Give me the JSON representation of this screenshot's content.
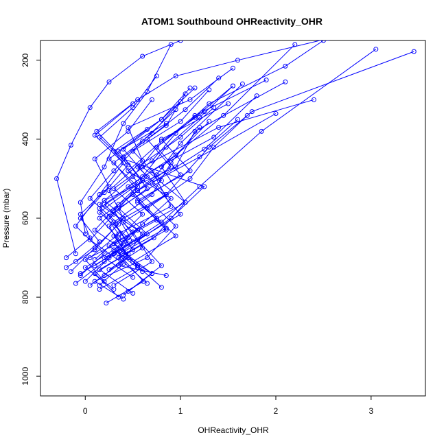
{
  "chart_data": {
    "type": "line",
    "title": "ATOM1 Southbound OHReactivity_OHR",
    "xlabel": "OHReactivity_OHR",
    "ylabel": "Pressure (mbar)",
    "xlim": [
      -0.47,
      3.57
    ],
    "ylim": [
      1050,
      150
    ],
    "y_reversed": true,
    "x_ticks": [
      0,
      1,
      2,
      3
    ],
    "y_ticks": [
      200,
      400,
      600,
      800,
      1000
    ],
    "x_tick_labels": [
      "0",
      "1",
      "2",
      "3"
    ],
    "y_tick_labels": [
      "200",
      "400",
      "600",
      "800",
      "1000"
    ],
    "grid": false,
    "legend": "none",
    "series_color": "#0000ff",
    "marker": "open-circle",
    "series": [
      {
        "x": [
          0.22,
          0.61,
          0.35,
          0.9,
          1.25,
          0.4,
          0.12,
          0.55,
          0.95,
          1.6,
          2.55
        ],
        "y": [
          815,
          760,
          690,
          600,
          520,
          450,
          380,
          300,
          240,
          200,
          145
        ]
      },
      {
        "x": [
          -0.05,
          0.3,
          0.8,
          1.2,
          1.85,
          3.05
        ],
        "y": [
          740,
          690,
          610,
          520,
          380,
          172
        ]
      },
      {
        "x": [
          0.5,
          0.15,
          0.72,
          1.05,
          0.6,
          1.4,
          2.4
        ],
        "y": [
          790,
          730,
          650,
          560,
          470,
          370,
          300
        ]
      },
      {
        "x": [
          0.05,
          0.45,
          0.25,
          0.85,
          1.3,
          1.75,
          3.45
        ],
        "y": [
          770,
          700,
          620,
          540,
          420,
          330,
          178
        ]
      },
      {
        "x": [
          0.85,
          0.35,
          0.6,
          0.2,
          0.95,
          1.15,
          2.1
        ],
        "y": [
          745,
          720,
          640,
          555,
          470,
          380,
          255
        ]
      },
      {
        "x": [
          -0.1,
          0.2,
          0.5,
          0.3,
          0.75,
          1.0,
          1.65
        ],
        "y": [
          765,
          710,
          660,
          580,
          490,
          410,
          260
        ]
      },
      {
        "x": [
          0.4,
          0.1,
          0.65,
          0.95,
          0.55,
          1.2,
          2.0
        ],
        "y": [
          805,
          760,
          700,
          620,
          530,
          445,
          335
        ]
      },
      {
        "x": [
          0.15,
          0.55,
          0.3,
          0.9,
          0.7,
          1.35,
          1.8
        ],
        "y": [
          780,
          725,
          645,
          570,
          480,
          395,
          290
        ]
      },
      {
        "x": [
          -0.2,
          0.1,
          0.4,
          0.25,
          0.6,
          0.45,
          1.1,
          1.55
        ],
        "y": [
          725,
          680,
          600,
          530,
          455,
          370,
          300,
          220
        ]
      },
      {
        "x": [
          0.3,
          0.7,
          0.5,
          1.05,
          0.8,
          1.45,
          2.2
        ],
        "y": [
          770,
          710,
          635,
          560,
          470,
          340,
          160
        ]
      },
      {
        "x": [
          -0.1,
          -0.3,
          -0.15,
          0.05,
          0.25,
          0.6,
          1.0
        ],
        "y": [
          690,
          500,
          415,
          320,
          255,
          190,
          150
        ]
      },
      {
        "x": [
          0.0,
          -0.05,
          0.2,
          0.4,
          0.65,
          0.9
        ],
        "y": [
          640,
          560,
          470,
          360,
          280,
          160
        ]
      },
      {
        "x": [
          0.05,
          0.35,
          0.15,
          0.55,
          0.3,
          0.8,
          1.1
        ],
        "y": [
          700,
          640,
          575,
          510,
          430,
          350,
          270
        ]
      },
      {
        "x": [
          0.6,
          0.25,
          0.75,
          0.45,
          0.95,
          1.3
        ],
        "y": [
          735,
          670,
          600,
          520,
          440,
          355
        ]
      },
      {
        "x": [
          0.2,
          0.0,
          0.45,
          0.15,
          0.6,
          0.35,
          0.85
        ],
        "y": [
          760,
          705,
          650,
          585,
          505,
          430,
          360
        ]
      },
      {
        "x": [
          0.45,
          0.8,
          0.55,
          1.0,
          0.7,
          1.25,
          1.6
        ],
        "y": [
          785,
          720,
          655,
          590,
          510,
          425,
          350
        ]
      },
      {
        "x": [
          -0.05,
          0.2,
          -0.1,
          0.15,
          0.4,
          0.1,
          0.5
        ],
        "y": [
          745,
          690,
          620,
          540,
          460,
          390,
          310
        ]
      },
      {
        "x": [
          0.35,
          0.1,
          0.5,
          0.3,
          0.7,
          0.9,
          1.2
        ],
        "y": [
          800,
          740,
          680,
          610,
          540,
          460,
          370
        ]
      },
      {
        "x": [
          0.1,
          0.45,
          0.25,
          0.65,
          0.4,
          0.85,
          1.05
        ],
        "y": [
          720,
          665,
          595,
          525,
          445,
          365,
          285
        ]
      },
      {
        "x": [
          0.65,
          0.35,
          0.85,
          0.55,
          1.1,
          0.8,
          1.5
        ],
        "y": [
          765,
          700,
          630,
          555,
          480,
          400,
          310
        ]
      },
      {
        "x": [
          0.25,
          0.6,
          0.4,
          0.85,
          0.55,
          1.0,
          1.35
        ],
        "y": [
          730,
          675,
          610,
          540,
          470,
          395,
          320
        ]
      },
      {
        "x": [
          -0.2,
          0.05,
          -0.05,
          0.25,
          0.1,
          0.45,
          0.7
        ],
        "y": [
          700,
          650,
          590,
          520,
          450,
          380,
          300
        ]
      },
      {
        "x": [
          0.5,
          0.2,
          0.65,
          0.35,
          0.8,
          0.5,
          1.0,
          1.3
        ],
        "y": [
          750,
          700,
          640,
          575,
          505,
          430,
          355,
          275
        ]
      },
      {
        "x": [
          0.3,
          0.55,
          0.15,
          0.5,
          0.75,
          1.15,
          1.9
        ],
        "y": [
          690,
          630,
          565,
          495,
          420,
          340,
          250
        ]
      },
      {
        "x": [
          -0.15,
          0.1,
          0.35,
          0.05,
          0.3,
          0.6,
          0.95
        ],
        "y": [
          735,
          675,
          615,
          550,
          480,
          405,
          325
        ]
      },
      {
        "x": [
          0.8,
          0.5,
          0.95,
          0.65,
          1.1,
          1.35,
          1.7
        ],
        "y": [
          775,
          710,
          645,
          575,
          500,
          420,
          340
        ]
      },
      {
        "x": [
          0.15,
          0.4,
          0.05,
          0.3,
          0.55,
          0.25,
          0.65
        ],
        "y": [
          770,
          715,
          655,
          590,
          520,
          450,
          375
        ]
      },
      {
        "x": [
          0.4,
          0.7,
          0.3,
          0.6,
          0.9,
          0.45,
          0.8,
          1.25
        ],
        "y": [
          795,
          740,
          680,
          615,
          550,
          480,
          405,
          330
        ]
      },
      {
        "x": [
          0.0,
          0.25,
          0.5,
          0.2,
          0.6,
          0.85,
          1.2,
          1.55
        ],
        "y": [
          760,
          700,
          635,
          565,
          495,
          420,
          345,
          265
        ]
      },
      {
        "x": [
          0.55,
          0.3,
          0.75,
          0.5,
          0.9,
          0.65,
          1.05,
          1.4
        ],
        "y": [
          720,
          665,
          605,
          540,
          470,
          400,
          325,
          245
        ]
      },
      {
        "x": [
          -0.1,
          0.15,
          -0.05,
          0.2,
          0.45,
          0.15,
          0.5,
          0.75
        ],
        "y": [
          710,
          660,
          600,
          535,
          465,
          395,
          320,
          240
        ]
      },
      {
        "x": [
          0.3,
          0.0,
          0.4,
          0.15,
          0.55,
          0.3,
          0.7,
          1.0
        ],
        "y": [
          780,
          725,
          665,
          600,
          530,
          460,
          385,
          305
        ]
      },
      {
        "x": [
          0.7,
          0.4,
          0.85,
          0.55,
          1.0,
          0.75,
          1.15,
          1.55
        ],
        "y": [
          740,
          685,
          625,
          560,
          490,
          420,
          345,
          265
        ]
      },
      {
        "x": [
          0.2,
          0.45,
          0.1,
          0.35,
          0.65,
          0.4,
          0.8,
          1.15
        ],
        "y": [
          745,
          690,
          630,
          565,
          495,
          425,
          350,
          270
        ]
      },
      {
        "x": [
          0.1,
          0.35,
          0.6,
          0.3,
          0.7,
          0.95,
          1.3,
          2.1,
          2.5
        ],
        "y": [
          705,
          650,
          590,
          525,
          455,
          385,
          310,
          215,
          150
        ]
      }
    ]
  }
}
